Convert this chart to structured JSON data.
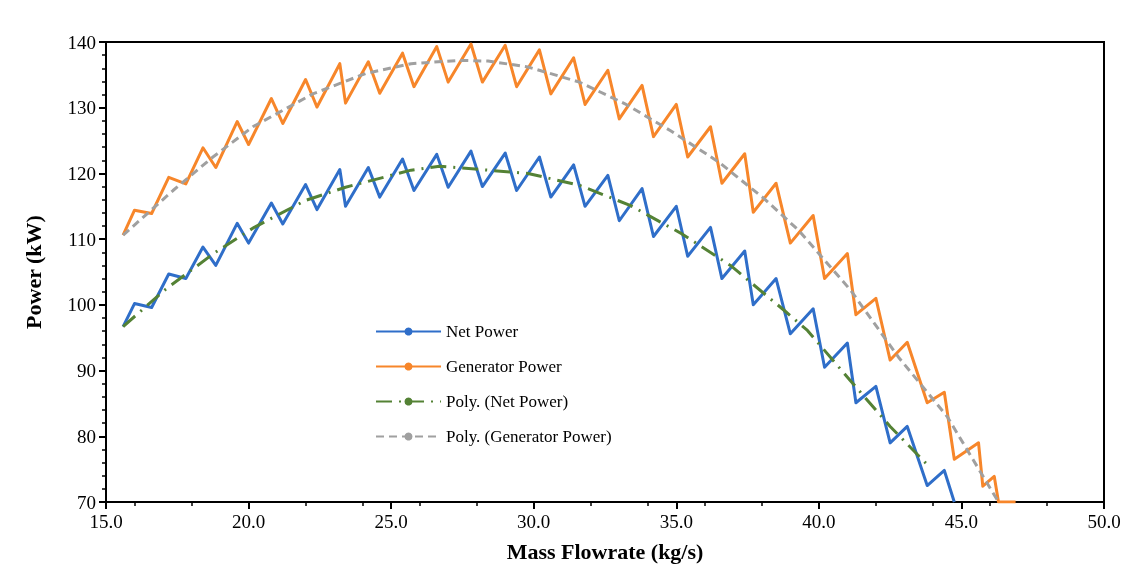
{
  "chart_data": {
    "type": "line",
    "xlabel": "Mass Flowrate (kg/s)",
    "ylabel": "Power (kW)",
    "xlim": [
      15,
      50
    ],
    "xticks": [
      {
        "value": 15,
        "label": "15.0"
      },
      {
        "value": 20,
        "label": "20.0"
      },
      {
        "value": 25,
        "label": "25.0"
      },
      {
        "value": 30,
        "label": "30.0"
      },
      {
        "value": 35,
        "label": "35.0"
      },
      {
        "value": 40,
        "label": "40.0"
      },
      {
        "value": 45,
        "label": "45.0"
      },
      {
        "value": 50,
        "label": "50.0"
      }
    ],
    "ylim": [
      70,
      140
    ],
    "yticks": [
      70,
      80,
      90,
      100,
      110,
      120,
      130,
      140
    ],
    "grid": false,
    "legend": "bottom left",
    "marker": "none",
    "series": [
      {
        "name": "Net Power",
        "color": "#2f6ec9",
        "line_style": "solid",
        "x": [
          15.6,
          16.0,
          16.6,
          17.2,
          17.8,
          18.4,
          18.85,
          19.6,
          20.0,
          20.8,
          21.2,
          22.0,
          22.4,
          23.2,
          23.4,
          24.2,
          24.6,
          25.4,
          25.8,
          26.6,
          27.0,
          27.8,
          28.2,
          29.0,
          29.4,
          30.2,
          30.6,
          31.4,
          31.8,
          32.6,
          33.0,
          33.8,
          34.2,
          35.0,
          35.4,
          36.2,
          36.6,
          37.4,
          37.7,
          38.5,
          39.0,
          39.8,
          40.2,
          41.0,
          41.3,
          42.0,
          42.5,
          43.1,
          43.8,
          44.4,
          44.75
        ],
        "values": [
          96.7,
          100.2,
          99.6,
          104.7,
          104.0,
          108.8,
          106.0,
          112.4,
          109.4,
          115.5,
          112.3,
          118.3,
          114.5,
          120.6,
          115.0,
          120.9,
          116.4,
          122.2,
          117.4,
          122.9,
          117.9,
          123.4,
          118.0,
          123.1,
          117.4,
          122.5,
          116.4,
          121.3,
          115.0,
          119.7,
          112.8,
          117.7,
          110.4,
          115.0,
          107.4,
          111.8,
          104.0,
          108.2,
          100.0,
          104.0,
          95.6,
          99.4,
          90.5,
          94.2,
          85.1,
          87.6,
          79.0,
          81.5,
          72.5,
          74.8,
          70
        ]
      },
      {
        "name": "Generator Power",
        "color": "#f7862a",
        "line_style": "solid",
        "x": [
          15.6,
          16.0,
          16.6,
          17.2,
          17.8,
          18.4,
          18.85,
          19.6,
          20.0,
          20.8,
          21.2,
          22.0,
          22.4,
          23.2,
          23.4,
          24.2,
          24.6,
          25.4,
          25.8,
          26.6,
          27.0,
          27.8,
          28.2,
          29.0,
          29.4,
          30.2,
          30.6,
          31.4,
          31.8,
          32.6,
          33.0,
          33.8,
          34.2,
          35.0,
          35.4,
          36.2,
          36.6,
          37.4,
          37.7,
          38.5,
          39.0,
          39.8,
          40.2,
          41.0,
          41.3,
          42.0,
          42.5,
          43.1,
          43.8,
          44.4,
          44.75,
          45.6,
          45.75,
          46.15,
          46.3,
          46.9
        ],
        "values": [
          110.6,
          114.4,
          113.9,
          119.4,
          118.4,
          123.9,
          120.9,
          127.9,
          124.4,
          131.4,
          127.6,
          134.3,
          130.1,
          136.7,
          130.7,
          137.0,
          132.2,
          138.3,
          133.2,
          139.3,
          133.9,
          139.7,
          133.9,
          139.5,
          133.2,
          138.8,
          132.1,
          137.6,
          130.5,
          135.7,
          128.3,
          133.4,
          125.6,
          130.5,
          122.5,
          127.1,
          118.5,
          123.0,
          114.1,
          118.5,
          109.4,
          113.6,
          104.0,
          107.8,
          98.5,
          101.0,
          91.6,
          94.3,
          85.1,
          86.7,
          76.5,
          79.0,
          72.4,
          73.9,
          70,
          70
        ]
      },
      {
        "name": "Poly. (Net Power)",
        "color": "#548235",
        "line_style": "dashdot",
        "x": [
          15.6,
          17.1,
          18.8,
          20.2,
          22.0,
          23.4,
          25.7,
          26.7,
          29.8,
          31.6,
          33.4,
          35.2,
          36.9,
          38.8,
          39.6,
          41.1,
          42.5,
          43.8
        ],
        "values": [
          96.7,
          102.4,
          107.9,
          111.8,
          115.9,
          117.9,
          120.5,
          121.1,
          120.0,
          118.2,
          115.1,
          110.8,
          106.0,
          99.1,
          96.1,
          88.5,
          81.5,
          75.7
        ]
      },
      {
        "name": "Poly. (Generator Power)",
        "color": "#a0a0a0",
        "line_style": "dashed",
        "x": [
          15.6,
          17.35,
          18.75,
          20.15,
          22.25,
          24.1,
          25.7,
          27.4,
          28.4,
          29.8,
          31.6,
          33.2,
          34.8,
          36.5,
          38.1,
          39.3,
          41.1,
          42.8,
          44.5,
          46.3
        ],
        "values": [
          110.6,
          117.4,
          122.5,
          127.1,
          132.1,
          135.2,
          136.7,
          137.2,
          137.1,
          136.2,
          133.9,
          130.6,
          126.5,
          121.7,
          116.1,
          111.3,
          102.3,
          92.0,
          83.0,
          70
        ]
      }
    ]
  }
}
